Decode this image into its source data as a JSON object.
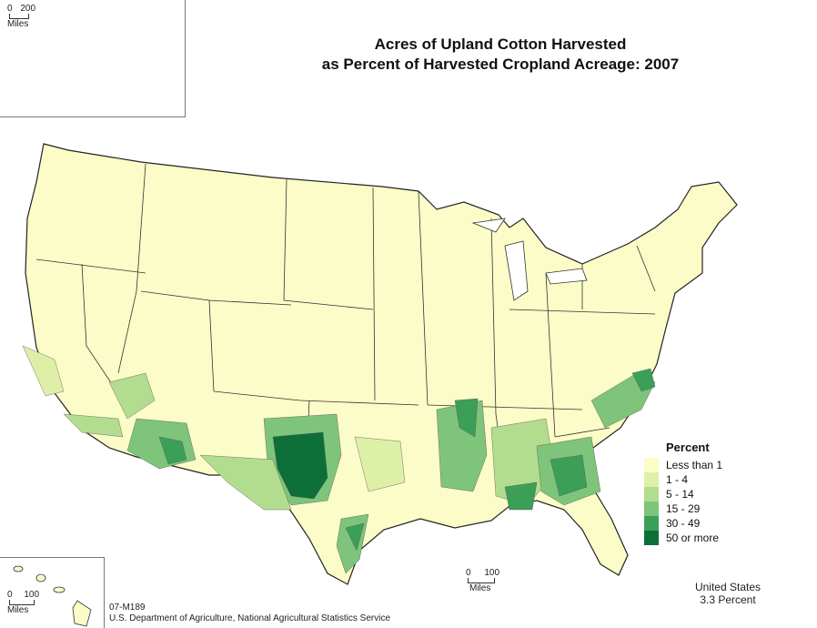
{
  "title_line1": "Acres of Upland Cotton Harvested",
  "title_line2": "as Percent of Harvested Cropland Acreage:  2007",
  "legend": {
    "title": "Percent",
    "classes": [
      {
        "label": "Less than 1",
        "color": "#fcfcc8"
      },
      {
        "label": "1 - 4",
        "color": "#def0a8"
      },
      {
        "label": "5 - 14",
        "color": "#b3dd8e"
      },
      {
        "label": "15 - 29",
        "color": "#7fc47b"
      },
      {
        "label": "30 - 49",
        "color": "#3c9f58"
      },
      {
        "label": "50 or more",
        "color": "#0c6f38"
      }
    ]
  },
  "summary": {
    "line1": "United States",
    "line2": "3.3 Percent"
  },
  "alaska_scale": {
    "zero": "0",
    "value": "200",
    "unit": "Miles"
  },
  "hawaii_scale": {
    "zero": "0",
    "value": "100",
    "unit": "Miles"
  },
  "main_scale": {
    "zero": "0",
    "value": "100",
    "unit": "Miles"
  },
  "credit": {
    "code": "07-M189",
    "source": "U.S. Department of Agriculture, National Agricultural Statistics Service"
  }
}
